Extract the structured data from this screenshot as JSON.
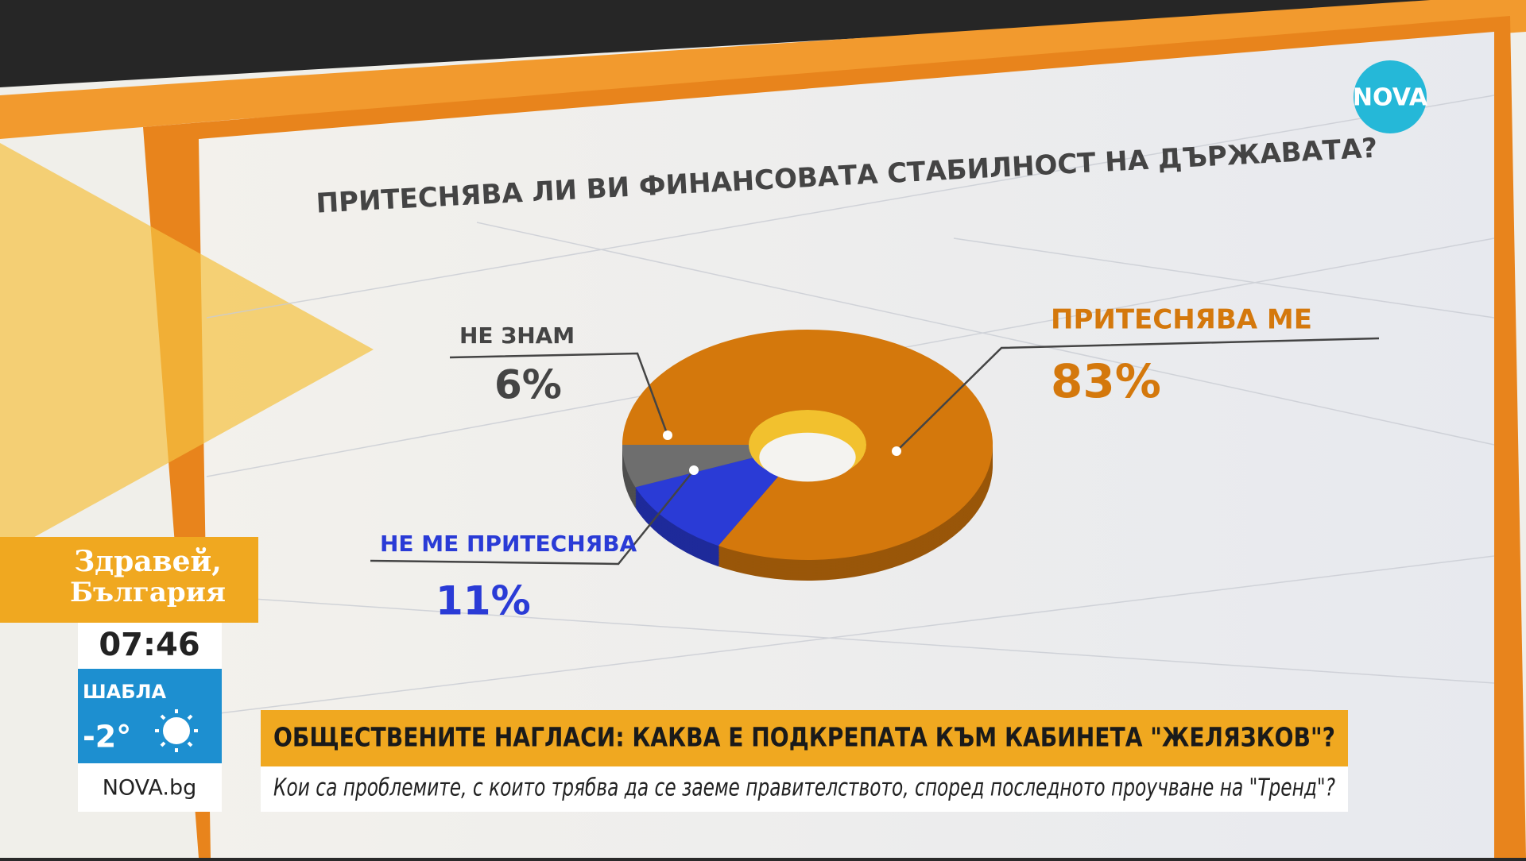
{
  "chart_data": {
    "type": "donut",
    "title": "ПРИТЕСНЯВА ЛИ ВИ ФИНАНСОВАТА СТАБИЛНОСТ НА ДЪРЖАВАТА?",
    "categories": [
      "ПРИТЕСНЯВА МЕ",
      "НЕ МЕ ПРИТЕСНЯВА",
      "НЕ ЗНАМ"
    ],
    "values": [
      83,
      11,
      6
    ],
    "value_labels": [
      "83%",
      "11%",
      "6%"
    ],
    "colors": [
      "#d4780c",
      "#2a3bd6",
      "#6e6e6e"
    ]
  },
  "broadcast": {
    "logo": "NOVA",
    "show_line1": "Здравей,",
    "show_line2": "България",
    "time": "07:46",
    "location": "ШАБЛА",
    "temperature": "-2°",
    "website": "NOVA.bg",
    "headline": "ОБЩЕСТВЕНИТЕ НАГЛАСИ: КАКВА Е ПОДКРЕПАТА КЪМ КАБИНЕТА \"ЖЕЛЯЗКОВ\"?",
    "subheadline": "Кои са проблемите, с които трябва да се заеме правителството, според последното проучване на \"Тренд\"?"
  }
}
